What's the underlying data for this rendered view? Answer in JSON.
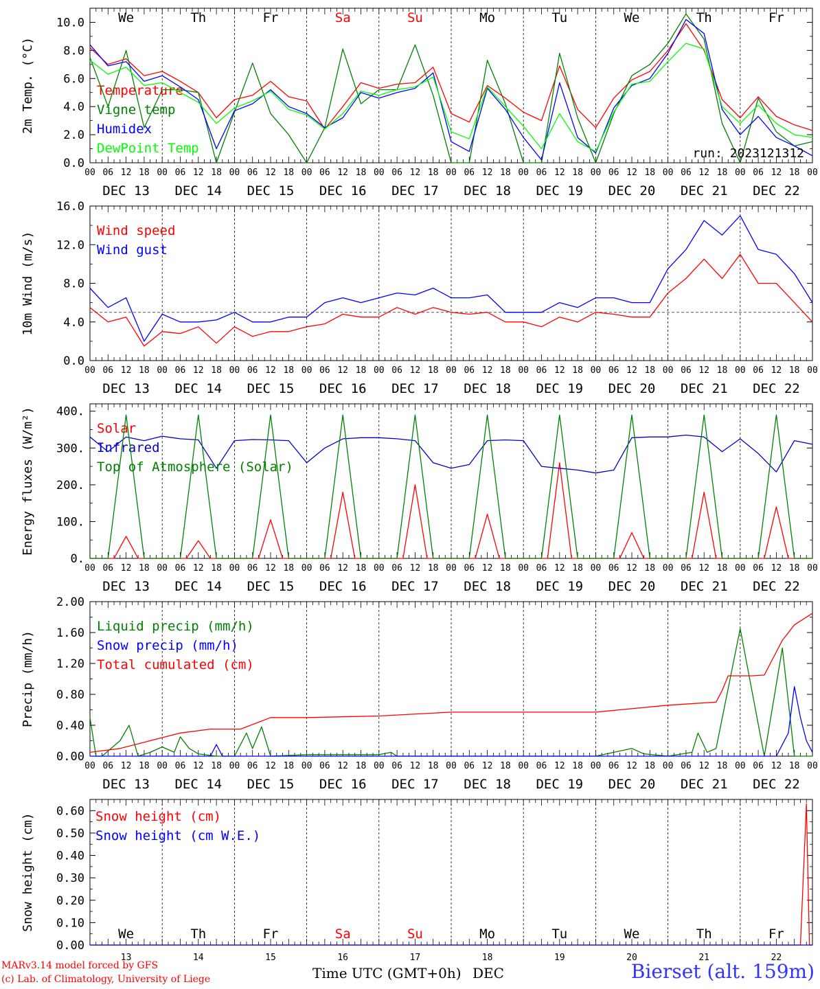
{
  "chart_data": [
    {
      "type": "line",
      "ylabel": "2m Temp. (°C)",
      "ylim": [
        0,
        11
      ],
      "yticks": [
        "0.0",
        "2.0",
        "4.0",
        "6.0",
        "8.0",
        "10.0"
      ],
      "annotation": "run: 2023121312",
      "x_unit": "hours since DEC 13 00 UTC",
      "series": [
        {
          "name": "Temperature",
          "color": "#ff0000",
          "x": [
            0,
            6,
            12,
            18,
            24,
            30,
            36,
            42,
            48,
            54,
            60,
            66,
            72,
            78,
            84,
            90,
            96,
            102,
            108,
            114,
            120,
            126,
            132,
            138,
            144,
            150,
            156,
            162,
            168,
            174,
            180,
            186,
            192,
            198,
            204,
            210,
            216,
            222,
            228,
            234,
            240
          ],
          "values": [
            8.2,
            7.0,
            7.4,
            6.2,
            6.5,
            5.8,
            5.0,
            3.2,
            4.5,
            4.8,
            5.8,
            4.7,
            4.4,
            2.4,
            4.0,
            5.7,
            5.3,
            5.6,
            5.7,
            6.8,
            3.5,
            2.9,
            5.5,
            4.6,
            3.6,
            3.0,
            6.9,
            3.8,
            2.5,
            4.6,
            5.9,
            6.5,
            8.0,
            9.9,
            8.0,
            4.5,
            3.2,
            4.7,
            3.3,
            2.7,
            2.3
          ]
        },
        {
          "name": "Vigne temp",
          "color": "#008000",
          "x": [
            0,
            6,
            12,
            18,
            24,
            30,
            36,
            42,
            48,
            54,
            60,
            66,
            72,
            78,
            84,
            90,
            96,
            102,
            108,
            114,
            120,
            126,
            132,
            138,
            144,
            150,
            156,
            162,
            168,
            174,
            180,
            186,
            192,
            198,
            204,
            210,
            216,
            222,
            228,
            234,
            240
          ],
          "values": [
            7.5,
            4.0,
            8.0,
            2.5,
            5.2,
            5.2,
            5.0,
            0.0,
            3.6,
            7.1,
            3.5,
            2.0,
            0.0,
            2.5,
            8.1,
            4.2,
            5.2,
            5.2,
            8.4,
            4.8,
            0.0,
            0.0,
            7.3,
            4.2,
            0.0,
            0.0,
            7.8,
            3.2,
            0.0,
            3.5,
            6.2,
            7.0,
            8.5,
            10.6,
            8.8,
            2.8,
            0.0,
            4.6,
            2.2,
            1.2,
            1.5
          ]
        },
        {
          "name": "Humidex",
          "color": "#0000ff",
          "x": [
            0,
            6,
            12,
            18,
            24,
            30,
            36,
            42,
            48,
            54,
            60,
            66,
            72,
            78,
            84,
            90,
            96,
            102,
            108,
            114,
            120,
            126,
            132,
            138,
            144,
            150,
            156,
            162,
            168,
            174,
            180,
            186,
            192,
            198,
            204,
            210,
            216,
            222,
            228,
            234,
            240
          ],
          "values": [
            8.4,
            6.9,
            7.2,
            5.8,
            6.2,
            5.4,
            4.5,
            1.0,
            3.7,
            4.2,
            5.2,
            4.0,
            3.5,
            2.5,
            3.2,
            5.0,
            4.6,
            5.0,
            5.3,
            6.4,
            1.5,
            0.8,
            5.3,
            3.8,
            1.8,
            0.2,
            5.7,
            1.8,
            0.7,
            3.9,
            5.5,
            6.0,
            7.8,
            10.2,
            9.2,
            3.8,
            2.0,
            3.3,
            1.8,
            1.2,
            0.5
          ]
        },
        {
          "name": "DewPoint Temp",
          "color": "#00ff00",
          "x": [
            0,
            6,
            12,
            18,
            24,
            30,
            36,
            42,
            48,
            54,
            60,
            66,
            72,
            78,
            84,
            90,
            96,
            102,
            108,
            114,
            120,
            126,
            132,
            138,
            144,
            150,
            156,
            162,
            168,
            174,
            180,
            186,
            192,
            198,
            204,
            210,
            216,
            222,
            228,
            234,
            240
          ],
          "values": [
            7.3,
            6.3,
            6.8,
            5.5,
            5.7,
            5.0,
            4.3,
            2.8,
            3.9,
            4.4,
            5.1,
            3.8,
            3.4,
            2.4,
            3.5,
            5.1,
            4.8,
            5.2,
            5.4,
            6.1,
            2.2,
            1.7,
            5.4,
            4.0,
            2.6,
            1.0,
            3.5,
            1.5,
            0.8,
            3.6,
            5.6,
            5.8,
            7.2,
            8.5,
            8.1,
            4.0,
            2.8,
            4.1,
            2.8,
            2.0,
            1.8
          ]
        }
      ]
    },
    {
      "type": "line",
      "ylabel": "10m Wind (m/s)",
      "ylim": [
        0,
        16
      ],
      "yticks": [
        "0.0",
        "4.0",
        "8.0",
        "12.0",
        "16.0"
      ],
      "reference_line": 5.0,
      "x_unit": "hours since DEC 13 00 UTC",
      "series": [
        {
          "name": "Wind speed",
          "color": "#ff0000",
          "x": [
            0,
            6,
            12,
            18,
            24,
            30,
            36,
            42,
            48,
            54,
            60,
            66,
            72,
            78,
            84,
            90,
            96,
            102,
            108,
            114,
            120,
            126,
            132,
            138,
            144,
            150,
            156,
            162,
            168,
            174,
            180,
            186,
            192,
            198,
            204,
            210,
            216,
            222,
            228,
            234,
            240
          ],
          "values": [
            5.5,
            4.0,
            4.5,
            1.5,
            3.0,
            2.8,
            3.5,
            1.8,
            3.5,
            2.5,
            3.0,
            3.0,
            3.5,
            3.8,
            4.8,
            4.5,
            4.5,
            5.5,
            4.8,
            5.5,
            5.0,
            4.8,
            5.0,
            4.0,
            4.0,
            3.5,
            4.5,
            4.0,
            5.0,
            4.8,
            4.5,
            4.5,
            7.0,
            8.5,
            10.5,
            8.5,
            11.0,
            8.0,
            8.0,
            6.0,
            4.0
          ]
        },
        {
          "name": "Wind gust",
          "color": "#0000ff",
          "x": [
            0,
            6,
            12,
            18,
            24,
            30,
            36,
            42,
            48,
            54,
            60,
            66,
            72,
            78,
            84,
            90,
            96,
            102,
            108,
            114,
            120,
            126,
            132,
            138,
            144,
            150,
            156,
            162,
            168,
            174,
            180,
            186,
            192,
            198,
            204,
            210,
            216,
            222,
            228,
            234,
            240
          ],
          "values": [
            7.5,
            5.5,
            6.5,
            2.0,
            4.8,
            4.0,
            4.0,
            4.2,
            5.0,
            4.0,
            4.0,
            4.5,
            4.5,
            6.0,
            6.5,
            6.0,
            6.5,
            7.0,
            6.8,
            7.5,
            6.5,
            6.5,
            6.8,
            5.0,
            5.0,
            5.0,
            6.0,
            5.5,
            6.5,
            6.5,
            6.0,
            6.0,
            9.5,
            11.5,
            14.5,
            13.0,
            15.0,
            11.5,
            11.0,
            9.0,
            6.0
          ]
        }
      ]
    },
    {
      "type": "line",
      "ylabel": "Energy fluxes (W/m²)",
      "ylim": [
        0,
        420
      ],
      "yticks": [
        "0.",
        "100.",
        "200.",
        "300.",
        "400."
      ],
      "x_unit": "hours since DEC 13 00 UTC",
      "series": [
        {
          "name": "Solar",
          "color": "#ff0000",
          "peaks": [
            {
              "x": 12,
              "value": 60
            },
            {
              "x": 36,
              "value": 48
            },
            {
              "x": 60,
              "value": 105
            },
            {
              "x": 84,
              "value": 180
            },
            {
              "x": 108,
              "value": 200
            },
            {
              "x": 132,
              "value": 120
            },
            {
              "x": 156,
              "value": 260
            },
            {
              "x": 180,
              "value": 70
            },
            {
              "x": 204,
              "value": 180
            },
            {
              "x": 228,
              "value": 140
            }
          ]
        },
        {
          "name": "Infrared",
          "color": "#0000cc",
          "x": [
            0,
            6,
            12,
            18,
            24,
            30,
            36,
            42,
            48,
            54,
            60,
            66,
            72,
            78,
            84,
            90,
            96,
            102,
            108,
            114,
            120,
            126,
            132,
            138,
            144,
            150,
            156,
            162,
            168,
            174,
            180,
            186,
            192,
            198,
            204,
            210,
            216,
            222,
            228,
            234,
            240
          ],
          "values": [
            330,
            290,
            330,
            320,
            332,
            325,
            322,
            245,
            320,
            323,
            322,
            320,
            260,
            300,
            325,
            328,
            328,
            325,
            320,
            260,
            245,
            255,
            320,
            322,
            320,
            250,
            245,
            240,
            232,
            240,
            328,
            330,
            330,
            335,
            330,
            290,
            325,
            285,
            235,
            320,
            310
          ]
        },
        {
          "name": "Top of Atmosphere (Solar)",
          "color": "#008000",
          "peaks": [
            {
              "x": 12,
              "value": 390
            },
            {
              "x": 36,
              "value": 390
            },
            {
              "x": 60,
              "value": 390
            },
            {
              "x": 84,
              "value": 390
            },
            {
              "x": 108,
              "value": 390
            },
            {
              "x": 132,
              "value": 390
            },
            {
              "x": 156,
              "value": 390
            },
            {
              "x": 180,
              "value": 390
            },
            {
              "x": 204,
              "value": 390
            },
            {
              "x": 228,
              "value": 390
            }
          ]
        }
      ]
    },
    {
      "type": "line",
      "ylabel": "Precip (mm/h)",
      "ylim": [
        0,
        2.0
      ],
      "yticks": [
        "0.00",
        "0.40",
        "0.80",
        "1.20",
        "1.60",
        "2.00"
      ],
      "x_unit": "hours since DEC 13 00 UTC",
      "series": [
        {
          "name": "Liquid precip (mm/h)",
          "color": "#008000",
          "x": [
            0,
            2,
            4,
            10,
            13,
            16,
            20,
            24,
            28,
            30,
            33,
            36,
            42,
            48,
            52,
            54,
            57,
            60,
            72,
            96,
            100,
            102,
            120,
            144,
            168,
            174,
            180,
            184,
            192,
            200,
            202,
            205,
            208,
            216,
            224,
            230,
            234,
            236,
            240
          ],
          "values": [
            0.5,
            0.0,
            0.0,
            0.2,
            0.4,
            0.0,
            0.05,
            0.12,
            0.05,
            0.25,
            0.1,
            0.03,
            0.0,
            0.0,
            0.3,
            0.1,
            0.38,
            0.0,
            0.02,
            0.02,
            0.05,
            0.0,
            0.0,
            0.0,
            0.0,
            0.05,
            0.1,
            0.03,
            0.0,
            0.05,
            0.3,
            0.05,
            0.1,
            1.65,
            0.0,
            1.4,
            0.0,
            0.0,
            0.0
          ]
        },
        {
          "name": "Snow precip (mm/h)",
          "color": "#0000ff",
          "x": [
            0,
            40,
            42,
            44,
            228,
            232,
            234,
            236,
            238,
            240
          ],
          "values": [
            0.0,
            0.0,
            0.15,
            0.0,
            0.0,
            0.3,
            0.9,
            0.5,
            0.2,
            0.05
          ]
        },
        {
          "name": "Total cumulated (cm)",
          "color": "#ff0000",
          "x": [
            0,
            10,
            20,
            30,
            40,
            50,
            60,
            72,
            96,
            120,
            144,
            168,
            176,
            192,
            208,
            210,
            212,
            220,
            224,
            226,
            230,
            234,
            240
          ],
          "values": [
            0.05,
            0.1,
            0.2,
            0.3,
            0.35,
            0.35,
            0.5,
            0.5,
            0.52,
            0.57,
            0.57,
            0.57,
            0.6,
            0.66,
            0.7,
            0.85,
            1.04,
            1.04,
            1.05,
            1.2,
            1.5,
            1.7,
            1.85
          ]
        }
      ]
    },
    {
      "type": "line",
      "ylabel": "Snow height (cm)",
      "ylim": [
        0,
        0.65
      ],
      "yticks": [
        "0.00",
        "0.10",
        "0.20",
        "0.30",
        "0.40",
        "0.50",
        "0.60"
      ],
      "x_unit": "hours since DEC 13 00 UTC",
      "series": [
        {
          "name": "Snow height (cm)",
          "color": "#ff0000",
          "x": [
            0,
            236,
            238,
            239,
            240
          ],
          "values": [
            0,
            0,
            0.63,
            0,
            0
          ]
        },
        {
          "name": "Snow height (cm W.E.)",
          "color": "#0000ff",
          "x": [
            0,
            240
          ],
          "values": [
            0,
            0
          ]
        }
      ]
    }
  ],
  "x_tick_labels": [
    "00",
    "06",
    "12",
    "18"
  ],
  "final_tick_label": "00",
  "weekdays": [
    {
      "label": "We",
      "color": "#000000"
    },
    {
      "label": "Th",
      "color": "#000000"
    },
    {
      "label": "Fr",
      "color": "#000000"
    },
    {
      "label": "Sa",
      "color": "#ff0000"
    },
    {
      "label": "Su",
      "color": "#ff0000"
    },
    {
      "label": "Mo",
      "color": "#000000"
    },
    {
      "label": "Tu",
      "color": "#000000"
    },
    {
      "label": "We",
      "color": "#000000"
    },
    {
      "label": "Th",
      "color": "#000000"
    },
    {
      "label": "Fr",
      "color": "#000000"
    }
  ],
  "dates": [
    "DEC 13",
    "DEC 14",
    "DEC 15",
    "DEC 16",
    "DEC 17",
    "DEC 18",
    "DEC 19",
    "DEC 20",
    "DEC 21",
    "DEC 22"
  ],
  "day_numbers": [
    "13",
    "14",
    "15",
    "16",
    "17",
    "18",
    "19",
    "20",
    "21",
    "22"
  ],
  "footer": {
    "model_line1": "MARv3.14 model forced by GFS",
    "model_line2": "(c) Lab. of Climatology, University of Liege",
    "xlabel": "Time UTC (GMT+0h)",
    "month": "DEC",
    "station": "Bierset (alt. 159m)"
  },
  "colors": {
    "red": "#ff0000",
    "blue": "#0000ff",
    "green": "#008000",
    "lime": "#00ff00",
    "title_blue": "#3333ff"
  }
}
